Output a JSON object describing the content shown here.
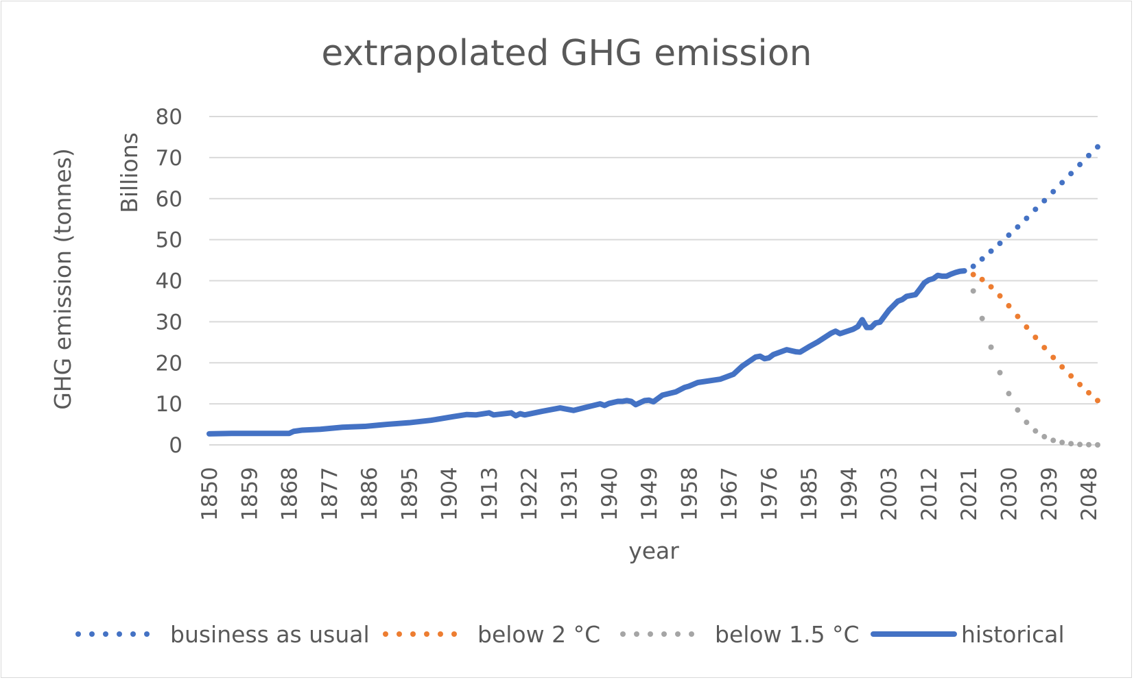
{
  "chart_data": {
    "type": "line",
    "title": "extrapolated GHG emission",
    "xlabel": "year",
    "ylabel": "GHG emission (tonnes)",
    "y_units": "Billions",
    "ylim": [
      0,
      80
    ],
    "yticks": [
      "0",
      "10",
      "20",
      "30",
      "40",
      "50",
      "60",
      "70",
      "80"
    ],
    "xlim": [
      1850,
      2050
    ],
    "xticks": [
      "1850",
      "1859",
      "1868",
      "1877",
      "1886",
      "1895",
      "1904",
      "1913",
      "1922",
      "1931",
      "1940",
      "1949",
      "1958",
      "1967",
      "1976",
      "1985",
      "1994",
      "2003",
      "2012",
      "2021",
      "2030",
      "2039",
      "2048"
    ],
    "grid": true,
    "legend_position": "bottom",
    "series": [
      {
        "name": "business as usual",
        "style": "dotted",
        "color": "#4472c4",
        "x": [
          2020,
          2022,
          2024,
          2026,
          2028,
          2030,
          2032,
          2034,
          2036,
          2038,
          2040,
          2042,
          2044,
          2046,
          2048,
          2050
        ],
        "y": [
          42,
          43.5,
          45.3,
          47.2,
          49.1,
          51.1,
          53.1,
          55.2,
          57.4,
          59.5,
          61.7,
          63.9,
          66.1,
          68.3,
          70.5,
          72.6
        ]
      },
      {
        "name": "below 2 °C",
        "style": "dotted",
        "color": "#ed7d31",
        "x": [
          2020,
          2022,
          2024,
          2026,
          2028,
          2030,
          2032,
          2034,
          2036,
          2038,
          2040,
          2042,
          2044,
          2046,
          2048,
          2050
        ],
        "y": [
          42,
          41.5,
          40.3,
          38.5,
          36.3,
          33.9,
          31.3,
          28.7,
          26.2,
          23.7,
          21.3,
          19.0,
          16.8,
          14.7,
          12.7,
          10.8
        ]
      },
      {
        "name": "below 1.5 °C",
        "style": "dotted",
        "color": "#a5a5a5",
        "x": [
          2020,
          2022,
          2024,
          2026,
          2028,
          2030,
          2032,
          2034,
          2036,
          2038,
          2040,
          2042,
          2044,
          2046,
          2048,
          2050
        ],
        "y": [
          42,
          37.5,
          30.8,
          23.8,
          17.6,
          12.5,
          8.5,
          5.5,
          3.4,
          2.0,
          1.1,
          0.6,
          0.3,
          0.1,
          0.05,
          0
        ]
      },
      {
        "name": "historical",
        "style": "solid",
        "color": "#4472c4",
        "x": [
          1850,
          1855,
          1860,
          1865,
          1868,
          1869,
          1871,
          1875,
          1880,
          1885,
          1888,
          1890,
          1895,
          1900,
          1905,
          1908,
          1910,
          1913,
          1914,
          1918,
          1919,
          1920,
          1921,
          1925,
          1929,
          1930,
          1932,
          1935,
          1938,
          1939,
          1940,
          1942,
          1943,
          1944,
          1945,
          1946,
          1948,
          1949,
          1950,
          1952,
          1955,
          1957,
          1958,
          1960,
          1965,
          1968,
          1970,
          1973,
          1974,
          1975,
          1976,
          1977,
          1979,
          1980,
          1982,
          1983,
          1985,
          1987,
          1990,
          1991,
          1992,
          1995,
          1996,
          1997,
          1998,
          1999,
          2000,
          2001,
          2003,
          2005,
          2006,
          2007,
          2008,
          2009,
          2010,
          2011,
          2012,
          2013,
          2014,
          2015,
          2016,
          2017,
          2018,
          2019,
          2020
        ],
        "y": [
          2.7,
          2.8,
          2.8,
          2.8,
          2.8,
          3.3,
          3.6,
          3.8,
          4.3,
          4.5,
          4.8,
          5.0,
          5.4,
          6.0,
          6.9,
          7.4,
          7.3,
          7.8,
          7.3,
          7.8,
          7.1,
          7.6,
          7.3,
          8.2,
          9.0,
          8.8,
          8.4,
          9.2,
          10.0,
          9.6,
          10.1,
          10.6,
          10.6,
          10.8,
          10.6,
          9.8,
          10.8,
          10.9,
          10.5,
          12.1,
          12.9,
          14.0,
          14.3,
          15.2,
          16.0,
          17.2,
          19.2,
          21.4,
          21.6,
          21.0,
          21.2,
          22.0,
          22.8,
          23.2,
          22.7,
          22.6,
          23.9,
          25.1,
          27.2,
          27.7,
          27.1,
          28.2,
          28.8,
          30.5,
          28.6,
          28.6,
          29.7,
          29.9,
          32.8,
          35.0,
          35.4,
          36.2,
          36.4,
          36.6,
          38.0,
          39.5,
          40.2,
          40.5,
          41.3,
          41.1,
          41.1,
          41.6,
          42.0,
          42.3,
          42.4
        ]
      }
    ]
  }
}
